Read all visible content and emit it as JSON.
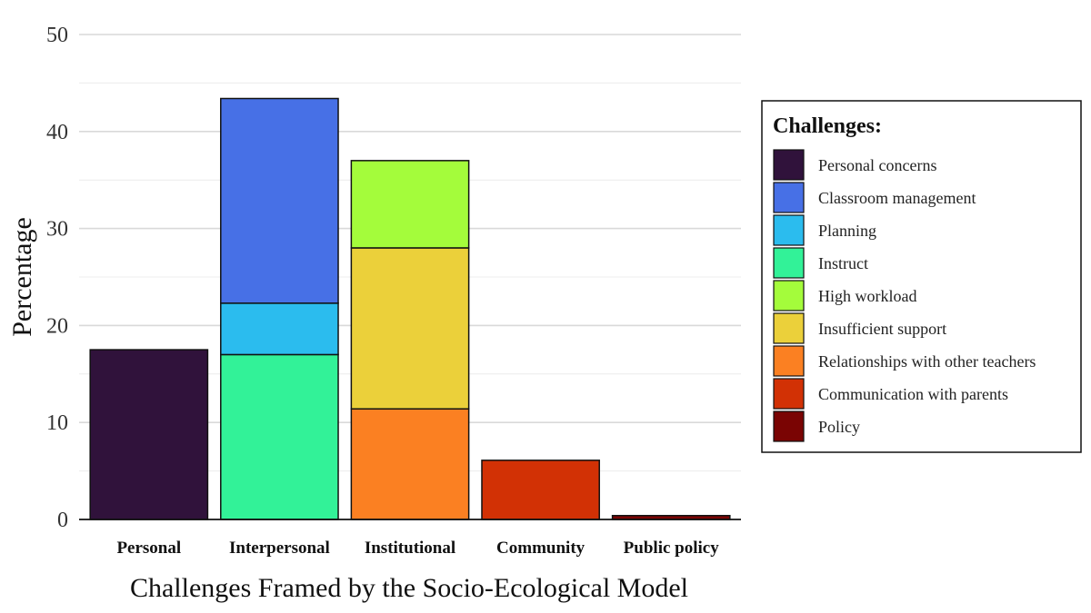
{
  "chart_data": {
    "type": "bar",
    "stacked": true,
    "title": "",
    "xlabel": "Challenges Framed by the Socio-Ecological Model",
    "ylabel": "Percentage",
    "ylim": [
      0,
      50
    ],
    "yticks": [
      0,
      10,
      20,
      30,
      40,
      50
    ],
    "grid": true,
    "legend_placement": "right",
    "legend_title": "Challenges:",
    "categories": [
      "Personal",
      "Interpersonal",
      "Institutional",
      "Community",
      "Public policy"
    ],
    "series": [
      {
        "name": "Personal concerns",
        "color": "#30123b",
        "values": [
          17.5,
          0,
          0,
          0,
          0
        ]
      },
      {
        "name": "Classroom management",
        "color": "#4770e6",
        "values": [
          0,
          21.1,
          0,
          0,
          0
        ]
      },
      {
        "name": "Planning",
        "color": "#2bbcee",
        "values": [
          0,
          5.3,
          0,
          0,
          0
        ]
      },
      {
        "name": "Instruct",
        "color": "#32f298",
        "values": [
          0,
          17.0,
          0,
          0,
          0
        ]
      },
      {
        "name": "High workload",
        "color": "#a4fc3b",
        "values": [
          0,
          0,
          9.0,
          0,
          0
        ]
      },
      {
        "name": "Insufficient support",
        "color": "#ebd03a",
        "values": [
          0,
          0,
          16.6,
          0,
          0
        ]
      },
      {
        "name": "Relationships with other teachers",
        "color": "#fb8022",
        "values": [
          0,
          0,
          11.4,
          0,
          0
        ]
      },
      {
        "name": "Communication with parents",
        "color": "#d23105",
        "values": [
          0,
          0,
          0,
          6.1,
          0
        ]
      },
      {
        "name": "Policy",
        "color": "#7a0403",
        "values": [
          0,
          0,
          0,
          0,
          0.4
        ]
      }
    ],
    "stack_order_bottom_to_top": [
      "Personal concerns",
      "Instruct",
      "Planning",
      "Classroom management",
      "Relationships with other teachers",
      "Insufficient support",
      "High workload",
      "Communication with parents",
      "Policy"
    ]
  }
}
